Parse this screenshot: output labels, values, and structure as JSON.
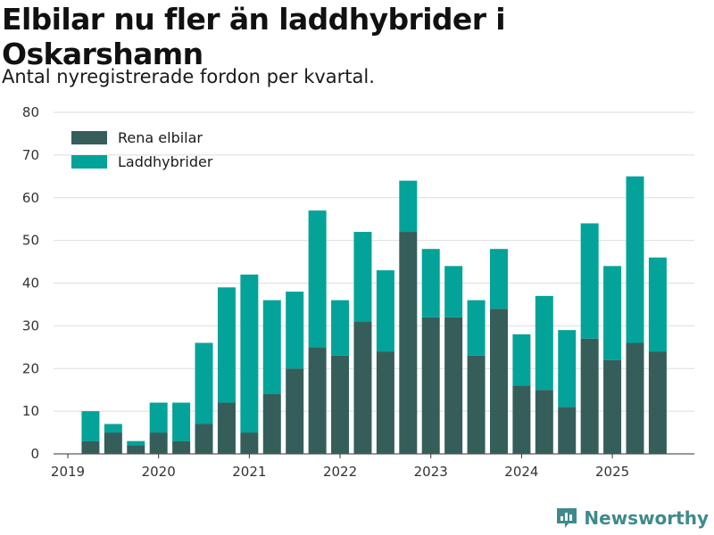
{
  "header": {
    "title": "Elbilar nu fler än laddhybrider i Oskarshamn",
    "subtitle": "Antal nyregistrerade fordon per kvartal."
  },
  "brand": {
    "name": "Newsworthy",
    "color": "#3f8a8c"
  },
  "chart_data": {
    "type": "bar",
    "stacked": true,
    "title": "Elbilar nu fler än laddhybrider i Oskarshamn",
    "subtitle": "Antal nyregistrerade fordon per kvartal.",
    "xlabel": "",
    "ylabel": "",
    "ylim": [
      0,
      80
    ],
    "yticks": [
      0,
      10,
      20,
      30,
      40,
      50,
      60,
      70,
      80
    ],
    "grid": true,
    "legend_position": "top-left",
    "x_tick_labels": [
      "2019",
      "2020",
      "2021",
      "2022",
      "2023",
      "2024",
      "2025"
    ],
    "categories": [
      "2019 Q2",
      "2019 Q3",
      "2019 Q4",
      "2020 Q1",
      "2020 Q2",
      "2020 Q3",
      "2020 Q4",
      "2021 Q1",
      "2021 Q2",
      "2021 Q3",
      "2021 Q4",
      "2022 Q1",
      "2022 Q2",
      "2022 Q3",
      "2022 Q4",
      "2023 Q1",
      "2023 Q2",
      "2023 Q3",
      "2023 Q4",
      "2024 Q1",
      "2024 Q2",
      "2024 Q3",
      "2024 Q4",
      "2025 Q1",
      "2025 Q2",
      "2025 Q3"
    ],
    "series": [
      {
        "name": "Rena elbilar",
        "color": "#355e5b",
        "values": [
          3,
          5,
          2,
          5,
          3,
          7,
          12,
          5,
          14,
          20,
          25,
          23,
          31,
          24,
          52,
          32,
          32,
          23,
          34,
          16,
          15,
          11,
          27,
          22,
          26,
          24
        ]
      },
      {
        "name": "Laddhybrider",
        "color": "#03a399",
        "values": [
          7,
          2,
          1,
          7,
          9,
          19,
          27,
          37,
          22,
          18,
          32,
          13,
          21,
          19,
          12,
          16,
          12,
          13,
          14,
          12,
          22,
          18,
          27,
          22,
          39,
          22
        ]
      }
    ]
  }
}
